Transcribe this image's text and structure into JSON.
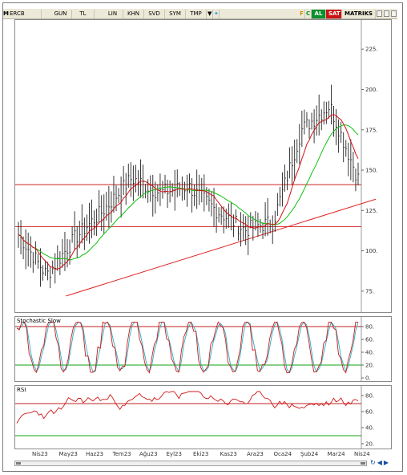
{
  "toolbar": {
    "mark": "M",
    "symbol": "ERCB",
    "items": [
      "GUN",
      "TL",
      "LIN",
      "KHN",
      "SVD",
      "SYM",
      "TMP"
    ],
    "c_label": "C",
    "f_label": "F",
    "al_label": "AL",
    "sat_label": "SAT",
    "matriks_label": "MATRIKS",
    "colors": {
      "al": "#0a8f2e",
      "sat": "#c81414"
    }
  },
  "price_panel": {
    "y_ticks": [
      "225.",
      "200.",
      "175.",
      "150.",
      "125.",
      "100.",
      "75."
    ],
    "y_values": [
      225,
      200,
      175,
      150,
      125,
      100,
      75
    ],
    "ylim": [
      62,
      243
    ]
  },
  "stoch_panel": {
    "title": "Stochastic Slow",
    "y_ticks": [
      "80.",
      "60.",
      "40.",
      "20.",
      "0."
    ]
  },
  "rsi_panel": {
    "title": "RSI",
    "y_ticks": [
      "80.",
      "60.",
      "40.",
      "20."
    ]
  },
  "date_axis": [
    "Nis23",
    "May23",
    "Haz23",
    "Tem23",
    "Ağu23",
    "Eyl23",
    "Eki23",
    "Kas23",
    "Ara23",
    "Oca24",
    "Şub24",
    "Mar24",
    "Nis24"
  ],
  "chart_data": {
    "type": "line",
    "x": [
      "Nis23",
      "May23",
      "Haz23",
      "Tem23",
      "Ağu23",
      "Eyl23",
      "Eki23",
      "Kas23",
      "Ara23",
      "Oca24",
      "Şub24",
      "Mar24",
      "Nis24"
    ],
    "series": [
      {
        "values": [
          110,
          85,
          108,
          125,
          145,
          136,
          140,
          125,
          113,
          118,
          175,
          190,
          145
        ]
      }
    ],
    "horizontal_lines": [
      141,
      115
    ],
    "trendline": {
      "from": [
        "May23",
        72
      ],
      "to": [
        "Nis24",
        132
      ]
    },
    "ylim": [
      62,
      243
    ],
    "stochastic_levels": [
      80,
      20
    ],
    "rsi_levels": [
      70,
      30
    ]
  }
}
